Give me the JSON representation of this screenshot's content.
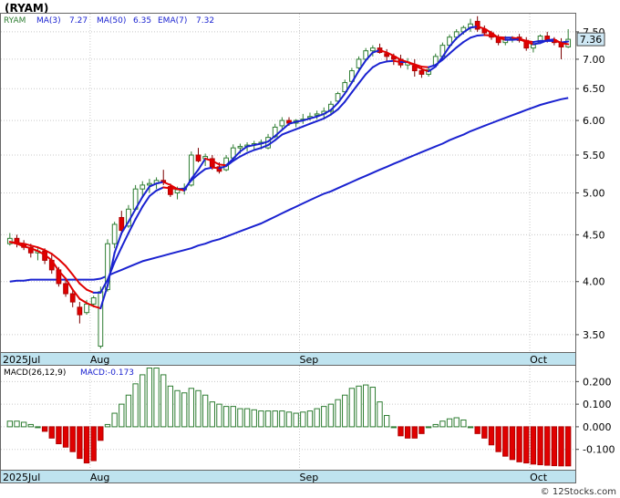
{
  "title": "(RYAM)",
  "colors": {
    "up": "#2e7d32",
    "down": "#e00000",
    "ma_blue": "#1a22d0",
    "ma_red": "#e00000",
    "grid": "#c8c8c8",
    "date_bar": "#bfe3ef",
    "price_tag": "#cfe8f5",
    "last_wick": "#2e7d32"
  },
  "price_panel": {
    "legend": {
      "symbol": "RYAM",
      "ma3": "MA(3)",
      "ma3_value": "7.27",
      "ma50": "MA(50)",
      "ma50_value": "6.35",
      "ema7": "EMA(7)",
      "ema7_value": "7.32"
    },
    "last_price_label": "7.36",
    "y_ticks": [
      "7.50",
      "7.00",
      "6.50",
      "6.00",
      "5.50",
      "5.00",
      "4.50",
      "4.00",
      "3.50"
    ]
  },
  "macd_panel": {
    "label": "MACD(26,12,9)",
    "value_label": "MACD:-0.173",
    "y_ticks": [
      "0.200",
      "0.100",
      "0.000",
      "-0.100"
    ]
  },
  "date_labels": [
    "2025Jul",
    "Aug",
    "Sep",
    "Oct"
  ],
  "watermark": "© 12Stocks.com",
  "chart_data": {
    "type": "candlestick",
    "scale": "log",
    "ylim": [
      3.35,
      7.85
    ],
    "macd_ylim": [
      -0.19,
      0.27
    ],
    "date_markers": [
      {
        "label": "2025Jul",
        "index": 0
      },
      {
        "label": "Aug",
        "index": 12
      },
      {
        "label": "Sep",
        "index": 42
      },
      {
        "label": "Oct",
        "index": 75
      }
    ],
    "candles": [
      [
        4.4,
        4.52,
        4.38,
        4.46
      ],
      [
        4.46,
        4.5,
        4.36,
        4.4
      ],
      [
        4.4,
        4.44,
        4.33,
        4.36
      ],
      [
        4.36,
        4.4,
        4.25,
        4.3
      ],
      [
        4.3,
        4.35,
        4.22,
        4.32
      ],
      [
        4.32,
        4.35,
        4.18,
        4.22
      ],
      [
        4.22,
        4.3,
        4.08,
        4.12
      ],
      [
        4.12,
        4.15,
        3.95,
        3.98
      ],
      [
        3.98,
        4.02,
        3.85,
        3.88
      ],
      [
        3.88,
        3.92,
        3.75,
        3.8
      ],
      [
        3.75,
        3.8,
        3.6,
        3.68
      ],
      [
        3.7,
        3.82,
        3.68,
        3.78
      ],
      [
        3.78,
        3.86,
        3.75,
        3.84
      ],
      [
        3.4,
        3.95,
        3.38,
        3.9
      ],
      [
        3.92,
        4.45,
        3.9,
        4.4
      ],
      [
        4.4,
        4.65,
        4.35,
        4.62
      ],
      [
        4.7,
        4.78,
        4.5,
        4.55
      ],
      [
        4.6,
        4.85,
        4.58,
        4.8
      ],
      [
        4.8,
        5.1,
        4.78,
        5.05
      ],
      [
        5.05,
        5.15,
        4.95,
        5.1
      ],
      [
        5.1,
        5.18,
        5.0,
        5.12
      ],
      [
        5.12,
        5.2,
        5.05,
        5.16
      ],
      [
        5.16,
        5.3,
        5.1,
        5.14
      ],
      [
        5.08,
        5.12,
        4.95,
        4.98
      ],
      [
        5.0,
        5.08,
        4.92,
        5.04
      ],
      [
        5.04,
        5.12,
        4.98,
        5.06
      ],
      [
        5.1,
        5.55,
        5.08,
        5.5
      ],
      [
        5.5,
        5.6,
        5.4,
        5.42
      ],
      [
        5.45,
        5.52,
        5.35,
        5.48
      ],
      [
        5.45,
        5.5,
        5.3,
        5.34
      ],
      [
        5.34,
        5.4,
        5.25,
        5.28
      ],
      [
        5.3,
        5.5,
        5.28,
        5.46
      ],
      [
        5.46,
        5.65,
        5.42,
        5.6
      ],
      [
        5.6,
        5.66,
        5.52,
        5.62
      ],
      [
        5.62,
        5.68,
        5.55,
        5.64
      ],
      [
        5.64,
        5.7,
        5.56,
        5.66
      ],
      [
        5.66,
        5.72,
        5.58,
        5.68
      ],
      [
        5.6,
        5.8,
        5.58,
        5.75
      ],
      [
        5.76,
        5.95,
        5.74,
        5.9
      ],
      [
        5.92,
        6.05,
        5.88,
        6.0
      ],
      [
        6.0,
        6.05,
        5.92,
        5.96
      ],
      [
        5.96,
        6.02,
        5.9,
        6.0
      ],
      [
        6.0,
        6.1,
        5.95,
        6.02
      ],
      [
        6.04,
        6.12,
        6.0,
        6.06
      ],
      [
        6.08,
        6.15,
        6.02,
        6.1
      ],
      [
        6.1,
        6.2,
        6.04,
        6.14
      ],
      [
        6.14,
        6.3,
        6.1,
        6.25
      ],
      [
        6.3,
        6.45,
        6.28,
        6.42
      ],
      [
        6.45,
        6.65,
        6.42,
        6.6
      ],
      [
        6.62,
        6.85,
        6.6,
        6.8
      ],
      [
        6.85,
        7.05,
        6.82,
        7.0
      ],
      [
        7.0,
        7.2,
        6.98,
        7.15
      ],
      [
        7.15,
        7.25,
        7.05,
        7.2
      ],
      [
        7.2,
        7.28,
        7.1,
        7.12
      ],
      [
        7.1,
        7.18,
        6.95,
        7.05
      ],
      [
        7.05,
        7.1,
        6.9,
        7.0
      ],
      [
        7.0,
        7.08,
        6.85,
        6.9
      ],
      [
        6.9,
        7.02,
        6.82,
        6.95
      ],
      [
        6.88,
        7.0,
        6.7,
        6.8
      ],
      [
        6.8,
        6.88,
        6.68,
        6.74
      ],
      [
        6.74,
        6.85,
        6.7,
        6.82
      ],
      [
        6.9,
        7.1,
        6.88,
        7.05
      ],
      [
        7.05,
        7.3,
        7.0,
        7.25
      ],
      [
        7.25,
        7.45,
        7.2,
        7.4
      ],
      [
        7.4,
        7.55,
        7.35,
        7.5
      ],
      [
        7.5,
        7.62,
        7.45,
        7.58
      ],
      [
        7.58,
        7.75,
        7.5,
        7.65
      ],
      [
        7.7,
        7.8,
        7.5,
        7.55
      ],
      [
        7.55,
        7.62,
        7.42,
        7.48
      ],
      [
        7.48,
        7.52,
        7.35,
        7.4
      ],
      [
        7.4,
        7.45,
        7.25,
        7.3
      ],
      [
        7.3,
        7.42,
        7.25,
        7.36
      ],
      [
        7.36,
        7.42,
        7.3,
        7.38
      ],
      [
        7.4,
        7.46,
        7.3,
        7.34
      ],
      [
        7.34,
        7.4,
        7.15,
        7.2
      ],
      [
        7.2,
        7.3,
        7.12,
        7.26
      ],
      [
        7.3,
        7.45,
        7.28,
        7.42
      ],
      [
        7.42,
        7.5,
        7.3,
        7.35
      ],
      [
        7.35,
        7.4,
        7.25,
        7.3
      ],
      [
        7.3,
        7.38,
        7.0,
        7.22
      ],
      [
        7.22,
        7.55,
        7.2,
        7.36
      ]
    ],
    "ma3": [
      4.42,
      4.4,
      4.37,
      4.35,
      4.32,
      4.28,
      4.22,
      4.11,
      4.03,
      3.92,
      3.83,
      3.79,
      3.76,
      3.74,
      3.96,
      4.3,
      4.52,
      4.65,
      4.8,
      4.95,
      5.08,
      5.12,
      5.14,
      5.1,
      5.05,
      5.03,
      5.18,
      5.3,
      5.45,
      5.42,
      5.37,
      5.36,
      5.45,
      5.55,
      5.62,
      5.64,
      5.66,
      5.69,
      5.77,
      5.86,
      5.95,
      5.98,
      6.0,
      6.03,
      6.06,
      6.1,
      6.16,
      6.27,
      6.42,
      6.6,
      6.8,
      6.98,
      7.12,
      7.16,
      7.12,
      7.06,
      6.99,
      6.95,
      6.89,
      6.83,
      6.79,
      6.87,
      7.04,
      7.23,
      7.38,
      7.49,
      7.58,
      7.6,
      7.56,
      7.48,
      7.39,
      7.35,
      7.35,
      7.36,
      7.31,
      7.27,
      7.29,
      7.34,
      7.36,
      7.29,
      7.27
    ],
    "ema7": [
      4.42,
      4.41,
      4.4,
      4.38,
      4.36,
      4.33,
      4.29,
      4.23,
      4.16,
      4.07,
      3.98,
      3.92,
      3.89,
      3.89,
      4.02,
      4.2,
      4.36,
      4.52,
      4.68,
      4.83,
      4.96,
      5.03,
      5.07,
      5.06,
      5.05,
      5.05,
      5.16,
      5.24,
      5.31,
      5.33,
      5.32,
      5.35,
      5.42,
      5.48,
      5.53,
      5.57,
      5.6,
      5.64,
      5.71,
      5.79,
      5.83,
      5.87,
      5.91,
      5.95,
      5.99,
      6.03,
      6.09,
      6.17,
      6.29,
      6.44,
      6.59,
      6.74,
      6.86,
      6.93,
      6.96,
      6.97,
      6.95,
      6.95,
      6.91,
      6.87,
      6.86,
      6.9,
      6.99,
      7.1,
      7.21,
      7.31,
      7.39,
      7.43,
      7.44,
      7.43,
      7.4,
      7.39,
      7.39,
      7.37,
      7.33,
      7.31,
      7.33,
      7.33,
      7.33,
      7.3,
      7.32
    ],
    "ma50": [
      4.0,
      4.01,
      4.01,
      4.02,
      4.02,
      4.02,
      4.02,
      4.02,
      4.02,
      4.02,
      4.02,
      4.02,
      4.02,
      4.03,
      4.06,
      4.09,
      4.12,
      4.15,
      4.18,
      4.21,
      4.23,
      4.25,
      4.27,
      4.29,
      4.31,
      4.33,
      4.35,
      4.38,
      4.4,
      4.43,
      4.45,
      4.48,
      4.51,
      4.54,
      4.57,
      4.6,
      4.63,
      4.67,
      4.71,
      4.75,
      4.79,
      4.83,
      4.87,
      4.91,
      4.95,
      4.99,
      5.02,
      5.06,
      5.1,
      5.14,
      5.18,
      5.22,
      5.26,
      5.3,
      5.34,
      5.38,
      5.42,
      5.46,
      5.5,
      5.54,
      5.58,
      5.62,
      5.66,
      5.71,
      5.75,
      5.79,
      5.84,
      5.88,
      5.92,
      5.96,
      6.0,
      6.04,
      6.08,
      6.12,
      6.16,
      6.2,
      6.24,
      6.27,
      6.3,
      6.33,
      6.35
    ],
    "macd": [
      0.025,
      0.025,
      0.02,
      0.01,
      0.0,
      -0.02,
      -0.05,
      -0.075,
      -0.09,
      -0.11,
      -0.14,
      -0.16,
      -0.15,
      -0.06,
      0.01,
      0.06,
      0.1,
      0.14,
      0.19,
      0.23,
      0.26,
      0.26,
      0.23,
      0.18,
      0.16,
      0.15,
      0.17,
      0.16,
      0.14,
      0.11,
      0.1,
      0.09,
      0.09,
      0.08,
      0.08,
      0.075,
      0.07,
      0.07,
      0.07,
      0.07,
      0.065,
      0.06,
      0.065,
      0.07,
      0.08,
      0.09,
      0.1,
      0.12,
      0.14,
      0.17,
      0.18,
      0.185,
      0.175,
      0.11,
      0.05,
      0.0,
      -0.04,
      -0.05,
      -0.05,
      -0.03,
      0.0,
      0.01,
      0.025,
      0.035,
      0.04,
      0.03,
      0.0,
      -0.03,
      -0.05,
      -0.08,
      -0.11,
      -0.13,
      -0.145,
      -0.155,
      -0.16,
      -0.165,
      -0.168,
      -0.17,
      -0.172,
      -0.173,
      -0.173
    ]
  }
}
